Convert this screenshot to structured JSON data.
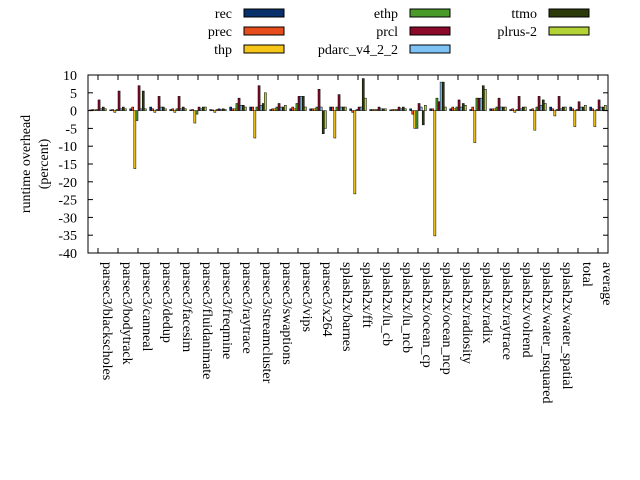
{
  "chart_data": {
    "type": "bar",
    "ylabel": "runtime overhead\n(percent)",
    "ylim": [
      -40,
      10
    ],
    "yticks": [
      10,
      5,
      0,
      -5,
      -10,
      -15,
      -20,
      -25,
      -30,
      -35,
      -40
    ],
    "grid": false,
    "legend_position": "top",
    "categories": [
      "parsec3/blackscholes",
      "parsec3/bodytrack",
      "parsec3/canneal",
      "parsec3/dedup",
      "parsec3/facesim",
      "parsec3/fluidanimate",
      "parsec3/freqmine",
      "parsec3/raytrace",
      "parsec3/streamcluster",
      "parsec3/swaptions",
      "parsec3/vips",
      "parsec3/x264",
      "splash2x/barnes",
      "splash2x/fft",
      "splash2x/lu_cb",
      "splash2x/lu_ncb",
      "splash2x/ocean_cp",
      "splash2x/ocean_ncp",
      "splash2x/radiosity",
      "splash2x/radix",
      "splash2x/raytrace",
      "splash2x/volrend",
      "splash2x/water_nsquared",
      "splash2x/water_spatial",
      "total",
      "average"
    ],
    "series": [
      {
        "name": "rec",
        "color": "#08306b",
        "values": [
          0.2,
          0.2,
          0.5,
          1.0,
          0.3,
          0.2,
          0.3,
          1.0,
          1.0,
          0.3,
          0.5,
          0.5,
          1.0,
          0.5,
          0.3,
          0.2,
          0.5,
          0.5,
          0.5,
          0.3,
          0.5,
          0.3,
          0.3,
          1.0,
          1.0,
          1.0
        ]
      },
      {
        "name": "prec",
        "color": "#e74c1c",
        "values": [
          0.3,
          0.3,
          1.0,
          0.5,
          0.5,
          0.3,
          0.2,
          0.5,
          1.0,
          0.5,
          1.0,
          0.5,
          1.0,
          -0.5,
          0.3,
          0.3,
          -1.0,
          0.5,
          1.0,
          1.0,
          0.5,
          0.5,
          0.5,
          0.5,
          0.5,
          0.5
        ]
      },
      {
        "name": "thp",
        "color": "#f5c518",
        "values": [
          0.2,
          -0.5,
          -16.3,
          -0.5,
          -0.5,
          -3.5,
          -0.5,
          0.5,
          -7.7,
          0.5,
          0.5,
          0.5,
          -7.7,
          -23.4,
          0.3,
          0.3,
          -5.0,
          -35.2,
          0.5,
          -9.0,
          0.5,
          -0.5,
          -5.5,
          -1.5,
          -4.5,
          -4.5
        ]
      },
      {
        "name": "ethp",
        "color": "#4a9a2a",
        "values": [
          0.3,
          0.3,
          -2.8,
          0.3,
          0.5,
          -1.0,
          0.3,
          2.0,
          1.0,
          1.0,
          2.0,
          1.0,
          1.0,
          0.3,
          0.3,
          0.3,
          -5.0,
          3.5,
          1.0,
          3.5,
          1.0,
          0.3,
          1.0,
          0.3,
          0.3,
          0.3
        ]
      },
      {
        "name": "prcl",
        "color": "#8b0a2a",
        "values": [
          3.0,
          5.5,
          7.0,
          4.0,
          4.0,
          1.0,
          0.5,
          3.5,
          7.0,
          2.0,
          4.0,
          6.0,
          4.5,
          1.0,
          1.0,
          1.0,
          2.0,
          2.5,
          3.0,
          3.5,
          3.5,
          4.0,
          4.0,
          4.0,
          2.5,
          3.0
        ]
      },
      {
        "name": "pdarc_v4_2_2",
        "color": "#7ec1f4",
        "values": [
          0.5,
          0.5,
          0.5,
          1.0,
          0.5,
          0.5,
          0.3,
          1.5,
          1.5,
          1.0,
          4.0,
          1.0,
          1.0,
          1.0,
          0.5,
          0.5,
          1.0,
          8.0,
          1.0,
          3.5,
          1.0,
          0.5,
          1.5,
          0.5,
          1.0,
          1.0
        ]
      },
      {
        "name": "ttmo",
        "color": "#2c3a0a",
        "values": [
          1.0,
          1.0,
          5.5,
          1.0,
          1.0,
          1.0,
          0.5,
          1.5,
          2.0,
          1.0,
          4.0,
          -6.5,
          1.0,
          9.0,
          0.5,
          1.0,
          -4.0,
          8.0,
          2.0,
          7.0,
          1.0,
          1.0,
          3.0,
          1.0,
          1.0,
          1.0
        ]
      },
      {
        "name": "plrus-2",
        "color": "#b2d235",
        "values": [
          0.5,
          0.5,
          0.5,
          0.5,
          0.5,
          1.0,
          0.3,
          1.0,
          5.0,
          1.5,
          1.0,
          -5.0,
          1.0,
          3.5,
          0.5,
          0.5,
          1.5,
          1.0,
          1.5,
          6.0,
          1.0,
          1.0,
          2.0,
          1.0,
          1.5,
          1.5
        ]
      }
    ]
  }
}
